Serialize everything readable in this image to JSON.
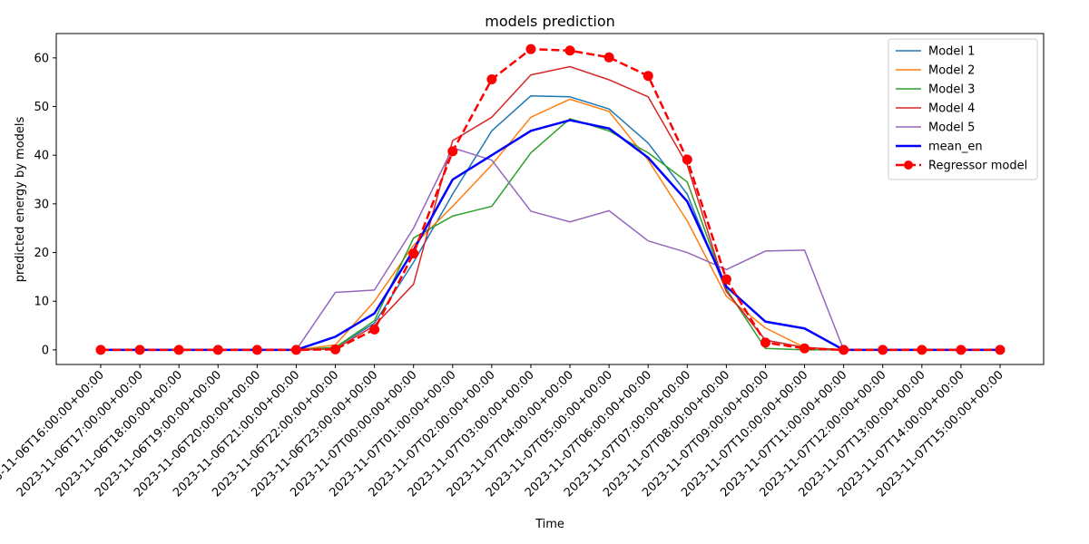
{
  "chart_data": {
    "type": "line",
    "title": "models prediction",
    "xlabel": "Time",
    "ylabel": "predicted energy by models",
    "ylim": [
      -3,
      65
    ],
    "yticks": [
      0,
      10,
      20,
      30,
      40,
      50,
      60
    ],
    "legend_position": "top-right",
    "grid": false,
    "x": [
      "2023-11-06T16:00:00+00:00",
      "2023-11-06T17:00:00+00:00",
      "2023-11-06T18:00:00+00:00",
      "2023-11-06T19:00:00+00:00",
      "2023-11-06T20:00:00+00:00",
      "2023-11-06T21:00:00+00:00",
      "2023-11-06T22:00:00+00:00",
      "2023-11-06T23:00:00+00:00",
      "2023-11-07T00:00:00+00:00",
      "2023-11-07T01:00:00+00:00",
      "2023-11-07T02:00:00+00:00",
      "2023-11-07T03:00:00+00:00",
      "2023-11-07T04:00:00+00:00",
      "2023-11-07T05:00:00+00:00",
      "2023-11-07T06:00:00+00:00",
      "2023-11-07T07:00:00+00:00",
      "2023-11-07T08:00:00+00:00",
      "2023-11-07T09:00:00+00:00",
      "2023-11-07T10:00:00+00:00",
      "2023-11-07T11:00:00+00:00",
      "2023-11-07T12:00:00+00:00",
      "2023-11-07T13:00:00+00:00",
      "2023-11-07T14:00:00+00:00",
      "2023-11-07T15:00:00+00:00"
    ],
    "series": [
      {
        "name": "Model 1",
        "color": "#1f77b4",
        "style": "solid",
        "width": 1.5,
        "marker": false,
        "values": [
          0,
          0,
          0,
          0,
          0,
          0,
          0.5,
          5.5,
          18.0,
          32.0,
          45.0,
          52.2,
          52.0,
          49.5,
          42.5,
          32.0,
          12.0,
          2.0,
          0.5,
          0,
          0,
          0,
          0,
          0
        ]
      },
      {
        "name": "Model 2",
        "color": "#ff7f0e",
        "style": "solid",
        "width": 1.5,
        "marker": false,
        "values": [
          0,
          0,
          0,
          0,
          0,
          0,
          1.0,
          10.0,
          21.5,
          29.5,
          38.0,
          47.8,
          51.5,
          49.0,
          39.0,
          26.5,
          11.0,
          4.5,
          0.5,
          0,
          0,
          0,
          0,
          0
        ]
      },
      {
        "name": "Model 3",
        "color": "#2ca02c",
        "style": "solid",
        "width": 1.5,
        "marker": false,
        "values": [
          0,
          0,
          0,
          0,
          0,
          0,
          0.5,
          6.0,
          23.0,
          27.5,
          29.5,
          40.5,
          47.5,
          45.0,
          40.5,
          34.5,
          12.5,
          0.3,
          0,
          0,
          0,
          0,
          0,
          0
        ]
      },
      {
        "name": "Model 4",
        "color": "#d62728",
        "style": "solid",
        "width": 1.5,
        "marker": false,
        "values": [
          0,
          0,
          0,
          0,
          0,
          0,
          0.2,
          5.0,
          13.5,
          43.0,
          47.8,
          56.5,
          58.2,
          55.5,
          52.0,
          38.0,
          12.0,
          2.0,
          0.5,
          0,
          0,
          0,
          0,
          0
        ]
      },
      {
        "name": "Model 5",
        "color": "#9467bd",
        "style": "solid",
        "width": 1.5,
        "marker": false,
        "values": [
          0,
          0,
          0,
          0,
          0,
          0,
          11.8,
          12.3,
          25.0,
          41.5,
          39.0,
          28.5,
          26.3,
          28.6,
          22.4,
          20.0,
          16.5,
          20.3,
          20.5,
          0,
          0,
          0,
          0,
          0
        ]
      },
      {
        "name": "mean_en",
        "color": "#0000ff",
        "style": "solid",
        "width": 2.5,
        "marker": false,
        "values": [
          0,
          0,
          0,
          0,
          0,
          0,
          2.7,
          7.5,
          20.5,
          35.0,
          40.0,
          45.0,
          47.2,
          45.5,
          39.5,
          30.5,
          13.0,
          5.8,
          4.4,
          0,
          0,
          0,
          0,
          0
        ]
      },
      {
        "name": "Regressor model",
        "color": "#ff0000",
        "style": "dashed",
        "width": 2.5,
        "marker": true,
        "values": [
          0,
          0,
          0,
          0,
          0,
          0,
          0.1,
          4.2,
          19.8,
          40.8,
          55.6,
          61.8,
          61.5,
          60.1,
          56.3,
          39.1,
          14.5,
          1.5,
          0.3,
          0,
          0,
          0,
          0,
          0
        ]
      }
    ]
  }
}
